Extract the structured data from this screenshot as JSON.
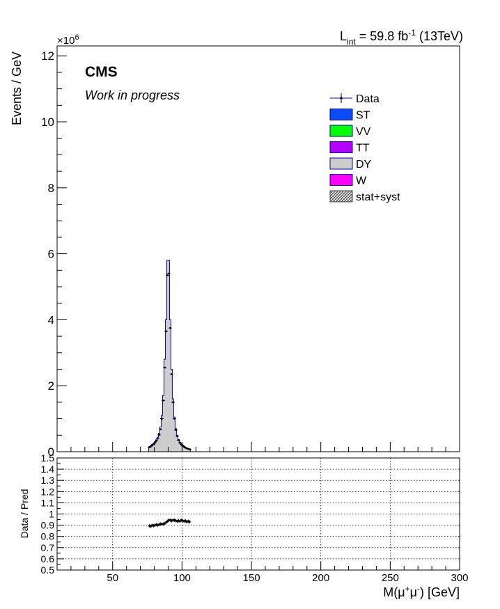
{
  "chart_data": [
    {
      "type": "histogram",
      "panel": "main",
      "title": "",
      "experiment": "CMS",
      "subtitle": "Work in progress",
      "lumi_prefix": "L",
      "lumi_sub": "int",
      "lumi_mid": " = 59.8 fb",
      "lumi_sup": "-1",
      "lumi_suffix": " (13TeV)",
      "ylabel": "Events / GeV",
      "y_multiplier_base": "×10",
      "y_multiplier_exp": "6",
      "xlim": [
        10,
        300
      ],
      "ylim": [
        0,
        12.3
      ],
      "y_ticks": [
        0,
        2,
        4,
        6,
        8,
        10,
        12
      ],
      "y_tick_labels": [
        "0",
        "2",
        "4",
        "6",
        "8",
        "10",
        "12"
      ],
      "legend_position": "top-right",
      "legend": [
        {
          "label": "Data",
          "kind": "marker",
          "color": "#000000"
        },
        {
          "label": "ST",
          "kind": "fill",
          "color": "#0a4cf5"
        },
        {
          "label": "VV",
          "kind": "fill",
          "color": "#00ff00"
        },
        {
          "label": "TT",
          "kind": "fill",
          "color": "#b300ff"
        },
        {
          "label": "DY",
          "kind": "fill",
          "color": "#cccccc"
        },
        {
          "label": "W",
          "kind": "fill",
          "color": "#ff00ff"
        },
        {
          "label": "stat+syst",
          "kind": "hatch",
          "color": "#555555"
        }
      ],
      "series_stack": {
        "name": "DY",
        "bin_edges": [
          76,
          77,
          78,
          79,
          80,
          81,
          82,
          83,
          84,
          85,
          86,
          87,
          88,
          89,
          90,
          91,
          92,
          93,
          94,
          95,
          96,
          97,
          98,
          99,
          100,
          101,
          102,
          103,
          104,
          105,
          106
        ],
        "values": [
          0.15,
          0.18,
          0.22,
          0.25,
          0.3,
          0.36,
          0.44,
          0.56,
          0.75,
          1.1,
          1.7,
          2.8,
          4.0,
          5.8,
          5.8,
          4.0,
          2.5,
          1.6,
          1.05,
          0.7,
          0.5,
          0.37,
          0.29,
          0.23,
          0.19,
          0.16,
          0.13,
          0.11,
          0.09,
          0.08
        ]
      },
      "series_data": {
        "name": "Data",
        "x": [
          76.5,
          77.5,
          78.5,
          79.5,
          80.5,
          81.5,
          82.5,
          83.5,
          84.5,
          85.5,
          86.5,
          87.5,
          88.5,
          89.5,
          90.5,
          91.5,
          92.5,
          93.5,
          94.5,
          95.5,
          96.5,
          97.5,
          98.5,
          99.5,
          100.5,
          101.5,
          102.5,
          103.5,
          104.5,
          105.5
        ],
        "y": [
          0.135,
          0.16,
          0.2,
          0.225,
          0.27,
          0.325,
          0.4,
          0.51,
          0.68,
          1.0,
          1.55,
          2.55,
          3.65,
          5.35,
          5.4,
          3.75,
          2.35,
          1.5,
          1.0,
          0.66,
          0.47,
          0.35,
          0.27,
          0.22,
          0.18,
          0.15,
          0.12,
          0.1,
          0.085,
          0.075
        ]
      }
    },
    {
      "type": "scatter",
      "panel": "ratio",
      "ylabel": "Data / Pred",
      "xlabel": "M(μ⁺μ⁻) [GeV]",
      "xlabel_base": "M(μ",
      "xlabel_sup1": "+",
      "xlabel_mid": "μ",
      "xlabel_sup2": "-",
      "xlabel_suffix": ") [GeV]",
      "xlim": [
        10,
        300
      ],
      "ylim": [
        0.5,
        1.5
      ],
      "grid": true,
      "x_ticks": [
        50,
        100,
        150,
        200,
        250,
        300
      ],
      "x_tick_labels": [
        "50",
        "100",
        "150",
        "200",
        "250",
        "300"
      ],
      "y_ticks": [
        0.5,
        0.6,
        0.7,
        0.8,
        0.9,
        1.0,
        1.1,
        1.2,
        1.3,
        1.4,
        1.5
      ],
      "y_tick_labels": [
        "0.5",
        "0.6",
        "0.7",
        "0.8",
        "0.9",
        "1",
        "1.1",
        "1.2",
        "1.3",
        "1.4",
        "1.5"
      ],
      "x": [
        76.5,
        77.5,
        78.5,
        79.5,
        80.5,
        81.5,
        82.5,
        83.5,
        84.5,
        85.5,
        86.5,
        87.5,
        88.5,
        89.5,
        90.5,
        91.5,
        92.5,
        93.5,
        94.5,
        95.5,
        96.5,
        97.5,
        98.5,
        99.5,
        100.5,
        101.5,
        102.5,
        103.5,
        104.5,
        105.5
      ],
      "y": [
        0.895,
        0.89,
        0.9,
        0.895,
        0.9,
        0.905,
        0.9,
        0.905,
        0.91,
        0.91,
        0.91,
        0.915,
        0.925,
        0.935,
        0.945,
        0.945,
        0.94,
        0.945,
        0.945,
        0.94,
        0.935,
        0.94,
        0.935,
        0.945,
        0.94,
        0.935,
        0.94,
        0.93,
        0.935,
        0.93
      ]
    }
  ]
}
